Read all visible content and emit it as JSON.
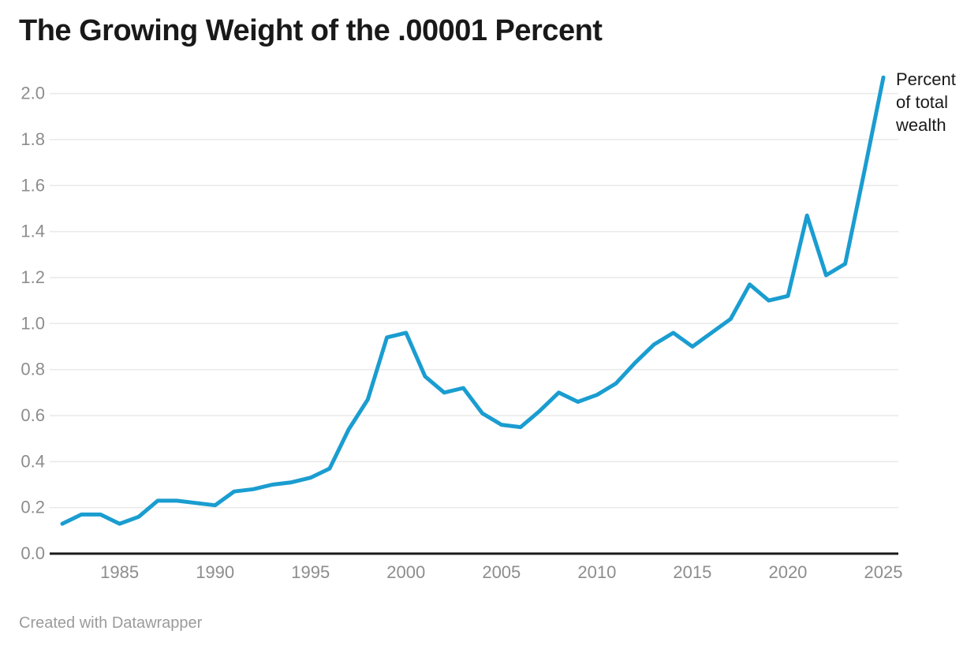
{
  "header": {
    "title": "The Growing Weight of the .00001 Percent"
  },
  "footer": {
    "text": "Created with Datawrapper"
  },
  "annotation": {
    "text": "Percent\nof total\nwealth"
  },
  "theme": {
    "line_color": "#1a9dd0",
    "grid_color": "#e9e9e9",
    "axis_color": "#1a1a1a",
    "tick_label_color": "#8d8d8d",
    "title_color": "#191919",
    "footer_color": "#9b9b9b",
    "background": "#ffffff"
  },
  "chart_data": {
    "type": "line",
    "title": "The Growing Weight of the .00001 Percent",
    "annotation": "Percent of total wealth",
    "xlabel": "",
    "ylabel": "Percent of total wealth",
    "x": [
      1982,
      1983,
      1984,
      1985,
      1986,
      1987,
      1988,
      1989,
      1990,
      1991,
      1992,
      1993,
      1994,
      1995,
      1996,
      1997,
      1998,
      1999,
      2000,
      2001,
      2002,
      2003,
      2004,
      2005,
      2006,
      2007,
      2008,
      2009,
      2010,
      2011,
      2012,
      2013,
      2014,
      2015,
      2016,
      2017,
      2018,
      2019,
      2020,
      2021,
      2022,
      2023,
      2024,
      2025
    ],
    "series": [
      {
        "name": "Percent of total wealth",
        "values": [
          0.13,
          0.17,
          0.17,
          0.13,
          0.16,
          0.23,
          0.23,
          0.22,
          0.21,
          0.27,
          0.28,
          0.3,
          0.31,
          0.33,
          0.37,
          0.54,
          0.67,
          0.94,
          0.96,
          0.77,
          0.7,
          0.72,
          0.61,
          0.56,
          0.55,
          0.62,
          0.7,
          0.66,
          0.69,
          0.74,
          0.83,
          0.91,
          0.96,
          0.9,
          0.96,
          1.02,
          1.17,
          1.1,
          1.12,
          1.47,
          1.21,
          1.26,
          1.66,
          2.07
        ]
      }
    ],
    "xticks": [
      1985,
      1990,
      1995,
      2000,
      2005,
      2010,
      2015,
      2020,
      2025
    ],
    "ytick_labels": [
      "0.0",
      "0.2",
      "0.4",
      "0.6",
      "0.8",
      "1.0",
      "1.2",
      "1.4",
      "1.6",
      "1.8",
      "2.0"
    ],
    "xlim": [
      1982,
      2025
    ],
    "ylim": [
      0.0,
      2.08
    ],
    "grid": "horizontal",
    "legend_position": "annotation-top-right",
    "line_color": "#1a9dd0"
  }
}
